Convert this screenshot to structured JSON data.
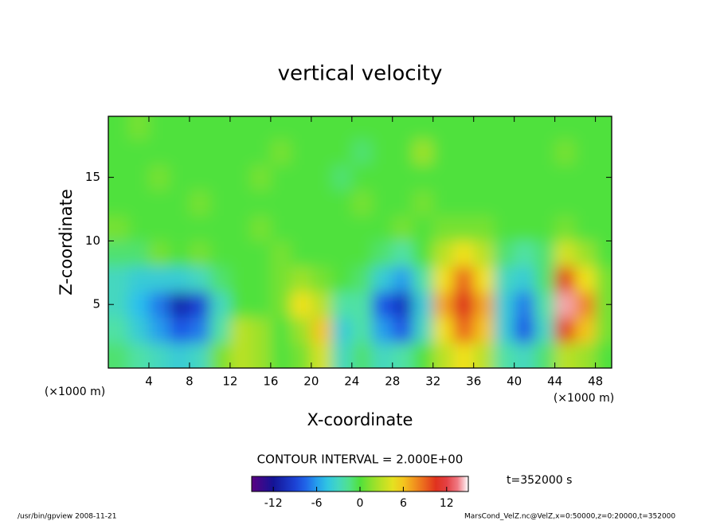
{
  "chart_data": {
    "type": "contour",
    "title": "vertical velocity",
    "x_label": "X-coordinate",
    "y_label": "Z-coordinate",
    "x_unit": "(×1000 m)",
    "y_unit": "(×1000 m)",
    "contour_interval": "CONTOUR INTERVAL = 2.000E+00",
    "time_label": "t=352000 s",
    "footer_left": "/usr/bin/gpview  2008-11-21",
    "footer_right": "MarsCond_VelZ.nc@VelZ,x=0:50000,z=0:20000,t=352000",
    "xlim": [
      0,
      49.6
    ],
    "ylim": [
      0,
      19.8
    ],
    "xticks": [
      4,
      8,
      12,
      16,
      20,
      24,
      28,
      32,
      36,
      40,
      44,
      48
    ],
    "yticks": [
      5,
      10,
      15
    ],
    "clim": [
      -15,
      15
    ],
    "colorbar_ticks": [
      -12,
      -6,
      0,
      6,
      12
    ],
    "x": [
      1,
      3,
      5,
      7,
      9,
      11,
      13,
      15,
      17,
      19,
      21,
      23,
      25,
      27,
      29,
      31,
      33,
      35,
      37,
      39,
      41,
      43,
      45,
      47,
      49
    ],
    "z": [
      1,
      3,
      5,
      7,
      9,
      11,
      13,
      15,
      17,
      19
    ],
    "values": [
      [
        -1,
        -2,
        -3,
        -4,
        -3,
        1,
        3,
        2,
        0,
        1,
        4,
        -3,
        -1,
        -3,
        -2,
        0,
        3,
        5,
        3,
        -2,
        -3,
        -1,
        3,
        2,
        0
      ],
      [
        -2,
        -4,
        -6,
        -8,
        -7,
        -2,
        3,
        2,
        0,
        2,
        6,
        -4,
        -2,
        -6,
        -8,
        -3,
        5,
        9,
        6,
        -4,
        -8,
        -3,
        10,
        6,
        1
      ],
      [
        -3,
        -5,
        -7,
        -11,
        -9,
        -3,
        0,
        0,
        1,
        5,
        3,
        -2,
        -2,
        -8,
        -10,
        -4,
        7,
        11,
        7,
        -4,
        -7,
        -2,
        14,
        8,
        1
      ],
      [
        -3,
        -4,
        -4,
        -4,
        -3,
        -1,
        0,
        0,
        1,
        2,
        1,
        0,
        -1,
        -4,
        -6,
        -2,
        5,
        9,
        5,
        -3,
        -4,
        -1,
        10,
        5,
        1
      ],
      [
        -1,
        -1,
        1,
        0,
        1,
        0,
        0,
        0,
        1,
        0,
        0,
        0,
        0,
        -1,
        -2,
        0,
        3,
        5,
        3,
        -1,
        -2,
        -1,
        4,
        2,
        0
      ],
      [
        1,
        0,
        0,
        0,
        0,
        0,
        0,
        1,
        0,
        0,
        0,
        0,
        0,
        0,
        1,
        0,
        1,
        1,
        1,
        0,
        0,
        0,
        1,
        0,
        0
      ],
      [
        0,
        0,
        0,
        0,
        1,
        0,
        0,
        0,
        0,
        0,
        0,
        0,
        1,
        0,
        0,
        1,
        0,
        0,
        0,
        0,
        0,
        0,
        0,
        0,
        0
      ],
      [
        0,
        0,
        1,
        0,
        0,
        0,
        0,
        1,
        0,
        0,
        0,
        -1,
        0,
        0,
        0,
        0,
        0,
        0,
        0,
        0,
        0,
        0,
        0,
        0,
        0
      ],
      [
        0,
        0,
        0,
        0,
        0,
        0,
        0,
        0,
        1,
        0,
        0,
        0,
        -1,
        0,
        0,
        2,
        0,
        0,
        0,
        0,
        0,
        0,
        1,
        0,
        0
      ],
      [
        0,
        1,
        0,
        0,
        0,
        0,
        0,
        0,
        0,
        0,
        0,
        0,
        0,
        0,
        0,
        0,
        0,
        0,
        0,
        0,
        0,
        0,
        0,
        0,
        0
      ]
    ]
  }
}
